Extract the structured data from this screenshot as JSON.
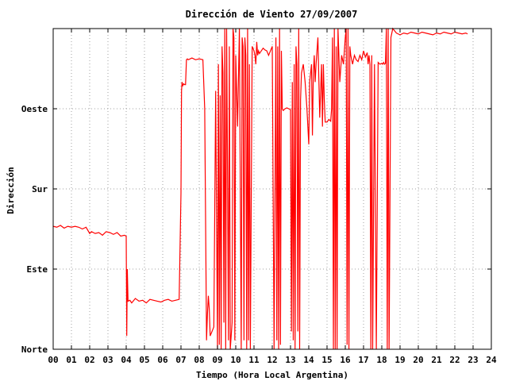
{
  "chart_data": {
    "type": "line",
    "title": "Dirección de Viento 27/09/2007",
    "xlabel": "Tiempo (Hora Local Argentina)",
    "ylabel": "Dirección",
    "xlim": [
      0,
      24
    ],
    "ylim": [
      0,
      360
    ],
    "x_ticks": [
      "00",
      "01",
      "02",
      "03",
      "04",
      "05",
      "06",
      "07",
      "08",
      "09",
      "10",
      "11",
      "12",
      "13",
      "14",
      "15",
      "16",
      "17",
      "18",
      "19",
      "20",
      "21",
      "22",
      "23",
      "24"
    ],
    "y_ticks": [
      {
        "value": 0,
        "label": "Norte"
      },
      {
        "value": 90,
        "label": "Este"
      },
      {
        "value": 180,
        "label": "Sur"
      },
      {
        "value": 270,
        "label": "Oeste"
      }
    ],
    "grid": true,
    "series_color": "#ff0000",
    "series": [
      {
        "x": [
          0.0,
          0.2,
          0.4,
          0.6,
          0.8,
          1.0,
          1.2,
          1.4,
          1.6,
          1.8,
          2.0,
          2.1,
          2.3,
          2.5,
          2.7,
          2.9,
          3.1,
          3.3,
          3.5,
          3.7,
          3.9,
          4.0,
          4.03,
          4.06,
          4.1,
          4.2,
          4.3,
          4.5,
          4.7,
          4.9,
          5.1,
          5.3,
          5.5,
          5.7,
          5.9,
          6.1,
          6.3,
          6.5,
          6.7,
          6.9,
          7.0,
          7.03,
          7.06,
          7.1,
          7.15,
          7.2,
          7.25,
          7.3,
          7.35,
          7.4,
          7.6,
          7.8,
          8.0,
          8.2,
          8.3,
          8.4,
          8.45,
          8.5,
          8.55,
          8.6,
          8.7,
          8.8,
          8.9,
          9.0,
          9.05,
          9.1,
          9.15,
          9.2,
          9.25,
          9.3,
          9.35,
          9.4,
          9.45,
          9.5,
          9.55,
          9.6,
          9.65,
          9.7,
          9.8,
          9.85,
          9.9,
          9.95,
          10.0,
          10.1,
          10.2,
          10.3,
          10.35,
          10.4,
          10.45,
          10.5,
          10.55,
          10.6,
          10.65,
          10.7,
          10.75,
          10.8,
          10.9,
          11.0,
          11.05,
          11.1,
          11.15,
          11.2,
          11.25,
          11.3,
          11.4,
          11.5,
          11.6,
          11.7,
          11.8,
          11.9,
          12.0,
          12.1,
          12.2,
          12.25,
          12.3,
          12.35,
          12.4,
          12.45,
          12.5,
          12.55,
          12.6,
          12.7,
          12.8,
          12.9,
          13.0,
          13.05,
          13.1,
          13.15,
          13.2,
          13.25,
          13.3,
          13.35,
          13.4,
          13.45,
          13.5,
          13.55,
          13.6,
          13.7,
          13.8,
          13.9,
          14.0,
          14.05,
          14.1,
          14.15,
          14.2,
          14.25,
          14.3,
          14.35,
          14.4,
          14.5,
          14.6,
          14.7,
          14.75,
          14.8,
          14.85,
          14.9,
          15.0,
          15.1,
          15.2,
          15.25,
          15.3,
          15.35,
          15.4,
          15.45,
          15.5,
          15.55,
          15.6,
          15.7,
          15.8,
          15.9,
          16.0,
          16.05,
          16.1,
          16.15,
          16.2,
          16.25,
          16.3,
          16.4,
          16.5,
          16.6,
          16.7,
          16.8,
          16.9,
          17.0,
          17.1,
          17.2,
          17.25,
          17.3,
          17.35,
          17.4,
          17.45,
          17.5,
          17.6,
          17.7,
          17.8,
          17.9,
          18.0,
          18.05,
          18.1,
          18.15,
          18.2,
          18.25,
          18.3,
          18.35,
          18.4,
          18.5,
          18.6,
          18.8,
          19.0,
          19.2,
          19.4,
          19.6,
          19.8,
          20.0,
          20.2,
          20.4,
          20.6,
          20.8,
          21.0,
          21.2,
          21.4,
          21.6,
          21.8,
          22.0,
          22.2,
          22.4,
          22.6,
          22.7
        ],
        "y": [
          138,
          137,
          139,
          136,
          138,
          137,
          138,
          137,
          135,
          137,
          130,
          132,
          130,
          131,
          128,
          132,
          131,
          129,
          131,
          127,
          128,
          127,
          15,
          90,
          54,
          55,
          52,
          57,
          54,
          55,
          52,
          56,
          55,
          54,
          53,
          55,
          56,
          54,
          55,
          56,
          175,
          290,
          300,
          296,
          298,
          297,
          297,
          325,
          326,
          325,
          327,
          325,
          326,
          325,
          270,
          10,
          40,
          60,
          45,
          15,
          20,
          25,
          290,
          0,
          320,
          5,
          285,
          0,
          340,
          310,
          30,
          360,
          0,
          360,
          200,
          10,
          340,
          0,
          30,
          360,
          350,
          10,
          330,
          250,
          360,
          0,
          350,
          340,
          10,
          350,
          330,
          0,
          360,
          10,
          320,
          0,
          340,
          335,
          330,
          320,
          345,
          330,
          335,
          332,
          335,
          338,
          336,
          335,
          330,
          335,
          340,
          0,
          350,
          10,
          340,
          0,
          360,
          5,
          335,
          270,
          268,
          270,
          271,
          270,
          269,
          20,
          300,
          10,
          320,
          0,
          340,
          320,
          20,
          360,
          0,
          280,
          310,
          320,
          300,
          270,
          230,
          300,
          310,
          320,
          240,
          310,
          330,
          300,
          320,
          350,
          260,
          320,
          250,
          320,
          280,
          255,
          255,
          258,
          256,
          270,
          350,
          0,
          360,
          0,
          340,
          0,
          360,
          300,
          330,
          320,
          350,
          360,
          5,
          360,
          0,
          340,
          330,
          320,
          330,
          325,
          323,
          330,
          325,
          335,
          328,
          333,
          320,
          330,
          320,
          0,
          330,
          0,
          320,
          0,
          322,
          320,
          321,
          320,
          322,
          320,
          321,
          360,
          0,
          360,
          0,
          350,
          360,
          355,
          353,
          355,
          354,
          356,
          355,
          354,
          356,
          355,
          354,
          353,
          355,
          354,
          356,
          355,
          354,
          356,
          355,
          354,
          355,
          354
        ]
      }
    ]
  }
}
